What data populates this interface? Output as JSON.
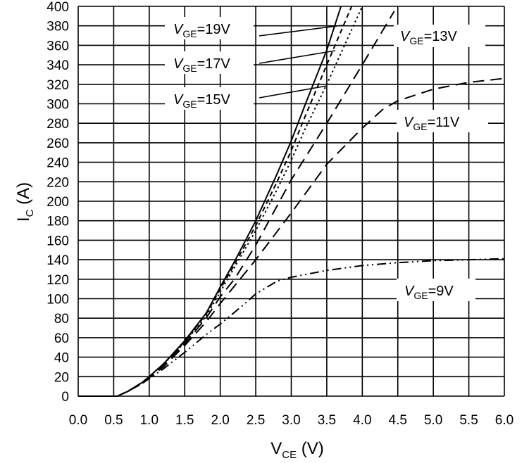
{
  "chart_data": {
    "type": "line",
    "title": "",
    "xlabel": {
      "main": "V",
      "sub": "CE",
      "unit": " (V)"
    },
    "ylabel": {
      "main": "I",
      "sub": "C",
      "unit": " (A)"
    },
    "xlim": [
      0,
      6
    ],
    "ylim": [
      0,
      400
    ],
    "x_ticks": [
      "0.0",
      "0.5",
      "1.0",
      "1.5",
      "2.0",
      "2.5",
      "3.0",
      "3.5",
      "4.0",
      "4.5",
      "5.0",
      "5.5",
      "6.0"
    ],
    "y_ticks": [
      "0",
      "20",
      "40",
      "60",
      "80",
      "100",
      "120",
      "140",
      "160",
      "180",
      "200",
      "220",
      "240",
      "260",
      "280",
      "300",
      "320",
      "340",
      "360",
      "380",
      "400"
    ],
    "grid": true,
    "series": [
      {
        "name": "VGE=19V",
        "label": {
          "italic": "V",
          "sub": "GE",
          "rest": "=19V"
        },
        "dash": "solid",
        "x": [
          0.0,
          0.5,
          0.55,
          0.7,
          0.9,
          1.0,
          1.2,
          1.5,
          1.8,
          2.0,
          2.2,
          2.5,
          2.8,
          3.0,
          3.2,
          3.5,
          3.7
        ],
        "y": [
          0,
          0,
          0,
          5,
          14,
          20,
          33,
          57,
          85,
          112,
          138,
          180,
          228,
          262,
          300,
          355,
          400
        ]
      },
      {
        "name": "VGE=17V",
        "label": {
          "italic": "V",
          "sub": "GE",
          "rest": "=17V"
        },
        "dash": "short-dash",
        "x": [
          0.0,
          0.5,
          0.55,
          0.7,
          0.9,
          1.0,
          1.2,
          1.5,
          1.8,
          2.0,
          2.2,
          2.5,
          2.8,
          3.0,
          3.2,
          3.5,
          3.85
        ],
        "y": [
          0,
          0,
          0,
          5,
          14,
          20,
          33,
          56,
          84,
          110,
          135,
          175,
          220,
          252,
          288,
          340,
          400
        ]
      },
      {
        "name": "VGE=15V",
        "label": {
          "italic": "V",
          "sub": "GE",
          "rest": "=15V"
        },
        "dash": "dot",
        "x": [
          0.0,
          0.5,
          0.55,
          0.7,
          0.9,
          1.0,
          1.2,
          1.5,
          1.8,
          2.0,
          2.2,
          2.5,
          2.8,
          3.0,
          3.2,
          3.5,
          4.0
        ],
        "y": [
          0,
          0,
          0,
          5,
          14,
          20,
          33,
          55,
          82,
          107,
          132,
          170,
          212,
          242,
          275,
          320,
          400
        ]
      },
      {
        "name": "VGE=13V",
        "label": {
          "italic": "V",
          "sub": "GE",
          "rest": "=13V"
        },
        "dash": "long-dash",
        "x": [
          0.0,
          0.5,
          0.55,
          0.7,
          0.9,
          1.0,
          1.2,
          1.5,
          1.8,
          2.0,
          2.2,
          2.5,
          3.0,
          3.5,
          4.0,
          4.45
        ],
        "y": [
          0,
          0,
          0,
          5,
          14,
          20,
          32,
          54,
          80,
          102,
          120,
          155,
          222,
          280,
          340,
          395
        ]
      },
      {
        "name": "VGE=11V",
        "label": {
          "italic": "V",
          "sub": "GE",
          "rest": "=11V"
        },
        "dash": "long-dash",
        "x": [
          0.0,
          0.5,
          0.55,
          0.7,
          0.9,
          1.0,
          1.2,
          1.5,
          1.8,
          2.0,
          2.5,
          3.0,
          3.5,
          4.0,
          4.3,
          4.5,
          5.0,
          5.5,
          6.0
        ],
        "y": [
          0,
          0,
          0,
          5,
          13,
          19,
          30,
          52,
          76,
          95,
          140,
          188,
          238,
          275,
          295,
          303,
          315,
          322,
          326
        ]
      },
      {
        "name": "VGE=9V",
        "label": {
          "italic": "V",
          "sub": "GE",
          "rest": "=9V"
        },
        "dash": "dash-dot-dot",
        "x": [
          0.0,
          0.5,
          0.55,
          0.7,
          0.9,
          1.0,
          1.2,
          1.5,
          1.8,
          2.0,
          2.3,
          2.5,
          2.8,
          3.0,
          3.5,
          4.0,
          4.5,
          5.0,
          5.5,
          6.0
        ],
        "y": [
          0,
          0,
          0,
          5,
          13,
          18,
          28,
          45,
          63,
          74,
          92,
          105,
          118,
          122,
          129,
          134,
          137,
          139,
          140,
          141
        ]
      }
    ],
    "colors": {
      "lines": "#000000",
      "grid": "#000000",
      "background": "#ffffff"
    }
  }
}
